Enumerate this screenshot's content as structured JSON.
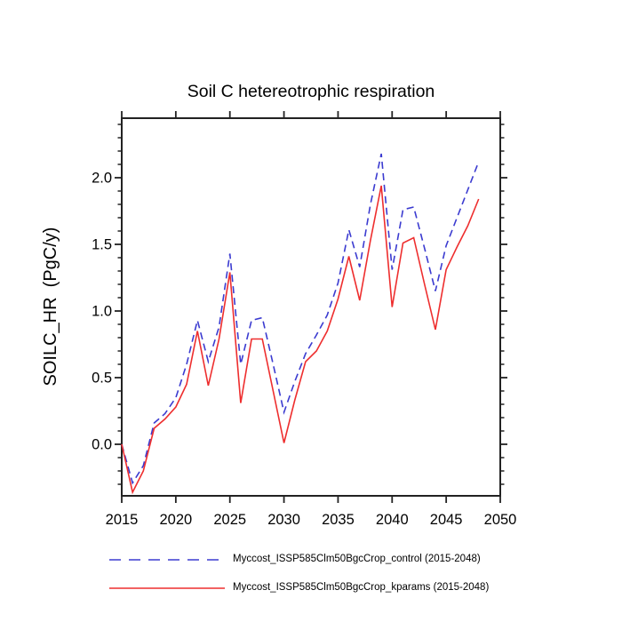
{
  "chart": {
    "title": "Soil C hetereotrophic respiration",
    "y_axis_label": "SOILC_HR  (PgC/y)",
    "colors": {
      "control": "#3b3bd0",
      "kparams": "#ee2e2e",
      "axis": "#222222"
    }
  },
  "legend": {
    "items": [
      {
        "label": "Myccost_ISSP585Clm50BgcCrop_control (2015-2048)",
        "style": "dashed",
        "color": "#3b3bd0"
      },
      {
        "label": "Myccost_ISSP585Clm50BgcCrop_kparams (2015-2048)",
        "style": "solid",
        "color": "#ee2e2e"
      }
    ]
  },
  "chart_data": {
    "type": "line",
    "title": "Soil C hetereotrophic respiration",
    "xlabel": "",
    "ylabel": "SOILC_HR (PgC/y)",
    "xlim": [
      2015,
      2050
    ],
    "ylim": [
      -0.39,
      2.45
    ],
    "grid": false,
    "legend_position": "bottom-left",
    "x_major_ticks": [
      2015,
      2020,
      2025,
      2030,
      2035,
      2040,
      2045,
      2050
    ],
    "y_major_ticks": [
      0.0,
      0.5,
      1.0,
      1.5,
      2.0
    ],
    "y_major_tick_labels": [
      "0.0",
      "0.5",
      "1.0",
      "1.5",
      "2.0"
    ],
    "y_minor_tick_step": 0.1,
    "x": [
      2015,
      2016,
      2017,
      2018,
      2019,
      2020,
      2021,
      2022,
      2023,
      2024,
      2025,
      2026,
      2027,
      2028,
      2029,
      2030,
      2031,
      2032,
      2033,
      2034,
      2035,
      2036,
      2037,
      2038,
      2039,
      2040,
      2041,
      2042,
      2043,
      2044,
      2045,
      2046,
      2047,
      2048
    ],
    "series": [
      {
        "name": "Myccost_ISSP585Clm50BgcCrop_control (2015-2048)",
        "color": "#3b3bd0",
        "line_style": "dashed",
        "values": [
          0.0,
          -0.29,
          -0.16,
          0.16,
          0.23,
          0.35,
          0.6,
          0.93,
          0.62,
          0.88,
          1.43,
          0.6,
          0.93,
          0.95,
          0.6,
          0.24,
          0.47,
          0.68,
          0.82,
          0.97,
          1.21,
          1.61,
          1.33,
          1.8,
          2.18,
          1.31,
          1.76,
          1.78,
          1.47,
          1.15,
          1.49,
          1.7,
          1.91,
          2.12
        ]
      },
      {
        "name": "Myccost_ISSP585Clm50BgcCrop_kparams (2015-2048)",
        "color": "#ee2e2e",
        "line_style": "solid",
        "values": [
          0.0,
          -0.36,
          -0.2,
          0.12,
          0.19,
          0.28,
          0.45,
          0.85,
          0.44,
          0.79,
          1.29,
          0.31,
          0.79,
          0.79,
          0.4,
          0.01,
          0.33,
          0.62,
          0.7,
          0.85,
          1.09,
          1.41,
          1.08,
          1.53,
          1.94,
          1.03,
          1.51,
          1.55,
          1.2,
          0.86,
          1.31,
          1.48,
          1.64,
          1.84
        ]
      }
    ]
  }
}
